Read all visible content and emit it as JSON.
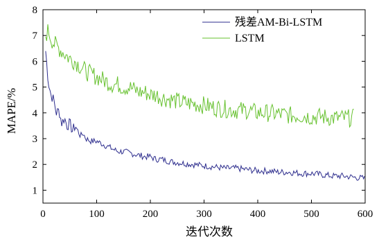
{
  "chart_data": {
    "type": "line",
    "xlabel": "迭代次数",
    "ylabel": "MAPE/%",
    "xlim": [
      0,
      600
    ],
    "ylim": [
      0.5,
      8
    ],
    "xticks": [
      0,
      100,
      200,
      300,
      400,
      500,
      600
    ],
    "yticks": [
      1,
      2,
      3,
      4,
      5,
      6,
      7,
      8
    ],
    "grid": false,
    "legend_position": "top-right",
    "series": [
      {
        "name": "残差AM-Bi-LSTM",
        "color": "#2b2b8c",
        "x": [
          5,
          10,
          15,
          20,
          25,
          30,
          35,
          40,
          45,
          50,
          55,
          60,
          65,
          70,
          75,
          80,
          90,
          100,
          110,
          120,
          130,
          140,
          150,
          160,
          170,
          180,
          190,
          200,
          210,
          220,
          240,
          260,
          280,
          300,
          320,
          340,
          360,
          380,
          400,
          420,
          440,
          460,
          480,
          500,
          520,
          540,
          560,
          580,
          600
        ],
        "values": [
          6.4,
          5.2,
          4.7,
          4.5,
          4.0,
          4.1,
          3.6,
          3.8,
          3.5,
          3.6,
          3.3,
          3.5,
          3.3,
          3.1,
          3.2,
          3.0,
          2.9,
          2.9,
          2.8,
          2.7,
          2.6,
          2.5,
          2.5,
          2.45,
          2.4,
          2.35,
          2.3,
          2.3,
          2.2,
          2.2,
          2.1,
          2.05,
          2.0,
          1.95,
          1.9,
          1.85,
          1.85,
          1.8,
          1.75,
          1.75,
          1.7,
          1.7,
          1.65,
          1.65,
          1.6,
          1.55,
          1.55,
          1.5,
          1.45
        ]
      },
      {
        "name": "LSTM",
        "color": "#66c12e",
        "x": [
          5,
          10,
          15,
          20,
          25,
          30,
          40,
          50,
          60,
          70,
          80,
          90,
          100,
          110,
          120,
          130,
          140,
          150,
          160,
          170,
          180,
          190,
          200,
          210,
          220,
          240,
          260,
          280,
          300,
          320,
          340,
          360,
          380,
          400,
          420,
          440,
          460,
          480,
          500,
          520,
          540,
          560,
          580
        ],
        "values": [
          7.0,
          7.2,
          6.9,
          6.7,
          6.6,
          6.5,
          6.3,
          6.1,
          6.0,
          5.8,
          5.6,
          5.5,
          5.4,
          5.3,
          5.2,
          5.1,
          5.1,
          5.0,
          5.0,
          4.9,
          4.8,
          4.8,
          4.7,
          4.7,
          4.6,
          4.5,
          4.4,
          4.35,
          4.3,
          4.2,
          4.15,
          4.1,
          4.1,
          4.0,
          4.0,
          3.95,
          3.9,
          3.9,
          3.85,
          3.85,
          3.8,
          3.8,
          3.8
        ]
      }
    ]
  }
}
